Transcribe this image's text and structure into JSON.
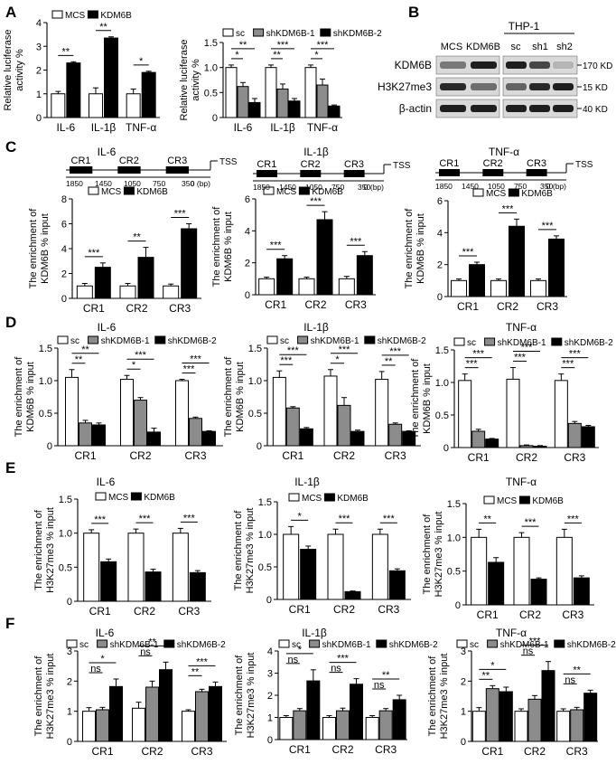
{
  "colors": {
    "white": "#ffffff",
    "gray": "#8c8c8c",
    "black": "#000000"
  },
  "panel_labels": [
    "A",
    "B",
    "C",
    "D",
    "E",
    "F"
  ],
  "blot": {
    "cell_line": "THP-1",
    "lanes_left": [
      "MCS",
      "KDM6B"
    ],
    "lanes_right": [
      "sc",
      "sh1",
      "sh2"
    ],
    "rows": [
      {
        "label": "KDM6B",
        "marker": "170 KD"
      },
      {
        "label": "H3K27me3",
        "marker": "15 KD"
      },
      {
        "label": "β-actin",
        "marker": "40 KD"
      }
    ],
    "intensity_left": [
      [
        0.45,
        0.9
      ],
      [
        0.85,
        0.5
      ],
      [
        0.9,
        0.9
      ]
    ],
    "intensity_right": [
      [
        0.9,
        0.7,
        0.15
      ],
      [
        0.55,
        0.85,
        0.9
      ],
      [
        0.9,
        0.9,
        0.9
      ]
    ]
  },
  "tss": [
    {
      "title": "IL-6",
      "regions": [
        "CR1",
        "CR2",
        "CR3"
      ],
      "ticks": [
        "1850",
        "1450",
        "1050",
        "750",
        "350",
        "0 (bp)"
      ],
      "end_label": "TSS"
    },
    {
      "title": "IL-1β",
      "regions": [
        "CR1",
        "CR2",
        "CR3"
      ],
      "ticks": [
        "1850",
        "1450",
        "1050",
        "750",
        "350",
        "0 (bp)"
      ],
      "end_label": "TSS"
    },
    {
      "title": "TNF-α",
      "regions": [
        "CR1",
        "CR2",
        "CR3"
      ],
      "ticks": [
        "1850",
        "1450",
        "1050",
        "750",
        "350",
        "0 (bp)"
      ],
      "end_label": "TSS"
    }
  ],
  "chart_data": [
    {
      "id": "A-left",
      "type": "bar",
      "title": "",
      "xlabel": "",
      "ylabel": "Relative luciferase activity %",
      "ylim": [
        0,
        4
      ],
      "yticks": [
        0,
        1,
        2,
        3,
        4
      ],
      "categories": [
        "IL-6",
        "IL-1β",
        "TNF-α"
      ],
      "series": [
        {
          "name": "MCS",
          "color": "white",
          "values": [
            1.0,
            1.0,
            1.0
          ],
          "err": [
            0.1,
            0.25,
            0.2
          ]
        },
        {
          "name": "KDM6B",
          "color": "black",
          "values": [
            2.3,
            3.35,
            1.9
          ],
          "err": [
            0.05,
            0.05,
            0.05
          ]
        }
      ],
      "sig": [
        [
          "**"
        ],
        [
          "**"
        ],
        [
          "*"
        ]
      ]
    },
    {
      "id": "A-right",
      "type": "bar",
      "title": "",
      "xlabel": "",
      "ylabel": "Relative luciferase activity %",
      "ylim": [
        0,
        1.5
      ],
      "yticks": [
        0,
        0.5,
        1.0,
        1.5
      ],
      "categories": [
        "IL-6",
        "IL-1β",
        "TNF-α"
      ],
      "series": [
        {
          "name": "sc",
          "color": "white",
          "values": [
            1.0,
            1.0,
            1.0
          ],
          "err": [
            0.05,
            0.05,
            0.05
          ]
        },
        {
          "name": "shKDM6B-1",
          "color": "gray",
          "values": [
            0.62,
            0.57,
            0.65
          ],
          "err": [
            0.08,
            0.1,
            0.12
          ]
        },
        {
          "name": "shKDM6B-2",
          "color": "black",
          "values": [
            0.3,
            0.33,
            0.23
          ],
          "err": [
            0.08,
            0.05,
            0.02
          ]
        }
      ],
      "sig": [
        [
          "*",
          "**"
        ],
        [
          "**",
          "***"
        ],
        [
          "*",
          "***"
        ]
      ]
    },
    {
      "id": "C-IL6",
      "type": "bar",
      "title": "",
      "xlabel": "",
      "ylabel": "The enrichment of KDM6B % input",
      "ylim": [
        0,
        8
      ],
      "yticks": [
        0,
        2,
        4,
        6,
        8
      ],
      "categories": [
        "CR1",
        "CR2",
        "CR3"
      ],
      "series": [
        {
          "name": "MCS",
          "color": "white",
          "values": [
            1.0,
            1.0,
            1.0
          ],
          "err": [
            0.2,
            0.2,
            0.15
          ]
        },
        {
          "name": "KDM6B",
          "color": "black",
          "values": [
            2.5,
            3.3,
            5.6
          ],
          "err": [
            0.35,
            0.8,
            0.4
          ]
        }
      ],
      "sig": [
        [
          "***"
        ],
        [
          "**"
        ],
        [
          "***"
        ]
      ]
    },
    {
      "id": "C-IL1b",
      "type": "bar",
      "title": "",
      "xlabel": "",
      "ylabel": "The enrichment of KDM6B % input",
      "ylim": [
        0,
        6
      ],
      "yticks": [
        0,
        2,
        4,
        6
      ],
      "categories": [
        "CR1",
        "CR2",
        "CR3"
      ],
      "series": [
        {
          "name": "MCS",
          "color": "white",
          "values": [
            1.0,
            1.0,
            1.0
          ],
          "err": [
            0.1,
            0.1,
            0.15
          ]
        },
        {
          "name": "KDM6B",
          "color": "black",
          "values": [
            2.25,
            4.7,
            2.45
          ],
          "err": [
            0.2,
            0.5,
            0.25
          ]
        }
      ],
      "sig": [
        [
          "***"
        ],
        [
          "***"
        ],
        [
          "***"
        ]
      ]
    },
    {
      "id": "C-TNFa",
      "type": "bar",
      "title": "",
      "xlabel": "",
      "ylabel": "The enrichment of KDM6B % input",
      "ylim": [
        0,
        6
      ],
      "yticks": [
        0,
        2,
        4,
        6
      ],
      "categories": [
        "CR1",
        "CR2",
        "CR3"
      ],
      "series": [
        {
          "name": "MCS",
          "color": "white",
          "values": [
            1.0,
            1.0,
            1.0
          ],
          "err": [
            0.1,
            0.1,
            0.1
          ]
        },
        {
          "name": "KDM6B",
          "color": "black",
          "values": [
            2.0,
            4.4,
            3.6
          ],
          "err": [
            0.15,
            0.45,
            0.2
          ]
        }
      ],
      "sig": [
        [
          "***"
        ],
        [
          "***"
        ],
        [
          "***"
        ]
      ]
    },
    {
      "id": "D-IL6",
      "type": "bar",
      "title": "",
      "xlabel": "",
      "ylabel": "The enrichment of KDM6B % input",
      "ylim": [
        0,
        1.5
      ],
      "yticks": [
        0,
        0.5,
        1.0,
        1.5
      ],
      "categories": [
        "CR1",
        "CR2",
        "CR3"
      ],
      "series": [
        {
          "name": "sc",
          "color": "white",
          "values": [
            1.05,
            1.02,
            1.0
          ],
          "err": [
            0.12,
            0.06,
            0.02
          ]
        },
        {
          "name": "shKDM6B-1",
          "color": "gray",
          "values": [
            0.35,
            0.7,
            0.42
          ],
          "err": [
            0.04,
            0.04,
            0.02
          ]
        },
        {
          "name": "shKDM6B-2",
          "color": "black",
          "values": [
            0.32,
            0.21,
            0.22
          ],
          "err": [
            0.03,
            0.06,
            0.01
          ]
        }
      ],
      "sig": [
        [
          "**",
          "**"
        ],
        [
          "*",
          "***"
        ],
        [
          "***",
          "***"
        ]
      ]
    },
    {
      "id": "D-IL1b",
      "type": "bar",
      "title": "",
      "xlabel": "",
      "ylabel": "The enrichment of KDM6B % input",
      "ylim": [
        0,
        1.5
      ],
      "yticks": [
        0,
        0.5,
        1.0,
        1.5
      ],
      "categories": [
        "CR1",
        "CR2",
        "CR3"
      ],
      "series": [
        {
          "name": "sc",
          "color": "white",
          "values": [
            1.05,
            1.07,
            1.02
          ],
          "err": [
            0.1,
            0.1,
            0.12
          ]
        },
        {
          "name": "shKDM6B-1",
          "color": "gray",
          "values": [
            0.58,
            0.62,
            0.33
          ],
          "err": [
            0.02,
            0.12,
            0.02
          ]
        },
        {
          "name": "shKDM6B-2",
          "color": "black",
          "values": [
            0.26,
            0.22,
            0.22
          ],
          "err": [
            0.02,
            0.02,
            0.01
          ]
        }
      ],
      "sig": [
        [
          "***",
          "***"
        ],
        [
          "*",
          "***"
        ],
        [
          "**",
          "***"
        ]
      ]
    },
    {
      "id": "D-TNFa",
      "type": "bar",
      "title": "",
      "xlabel": "",
      "ylabel": "The enrichment of KDM6B % input",
      "ylim": [
        0,
        1.5
      ],
      "yticks": [
        0,
        0.5,
        1.0,
        1.5
      ],
      "categories": [
        "CR1",
        "CR2",
        "CR3"
      ],
      "series": [
        {
          "name": "sc",
          "color": "white",
          "values": [
            1.03,
            1.05,
            1.03
          ],
          "err": [
            0.1,
            0.18,
            0.1
          ]
        },
        {
          "name": "shKDM6B-1",
          "color": "gray",
          "values": [
            0.25,
            0.03,
            0.37
          ],
          "err": [
            0.03,
            0.01,
            0.03
          ]
        },
        {
          "name": "shKDM6B-2",
          "color": "black",
          "values": [
            0.13,
            0.02,
            0.32
          ],
          "err": [
            0.01,
            0.01,
            0.02
          ]
        }
      ],
      "sig": [
        [
          "***",
          "***"
        ],
        [
          "***",
          "***"
        ],
        [
          "***",
          "***"
        ]
      ]
    },
    {
      "id": "E-IL6",
      "type": "bar",
      "title": "",
      "xlabel": "",
      "ylabel": "The enrichment of H3K27me3 % input",
      "ylim": [
        0,
        1.5
      ],
      "yticks": [
        0,
        0.5,
        1.0,
        1.5
      ],
      "categories": [
        "CR1",
        "CR2",
        "CR3"
      ],
      "series": [
        {
          "name": "MCS",
          "color": "white",
          "values": [
            1.0,
            1.0,
            1.0
          ],
          "err": [
            0.05,
            0.06,
            0.07
          ]
        },
        {
          "name": "KDM6B",
          "color": "black",
          "values": [
            0.58,
            0.43,
            0.42
          ],
          "err": [
            0.04,
            0.04,
            0.03
          ]
        }
      ],
      "sig": [
        [
          "***"
        ],
        [
          "***"
        ],
        [
          "***"
        ]
      ]
    },
    {
      "id": "E-IL1b",
      "type": "bar",
      "title": "",
      "xlabel": "",
      "ylabel": "The enrichment of H3K27me3 % input",
      "ylim": [
        0,
        1.5
      ],
      "yticks": [
        0,
        0.5,
        1.0,
        1.5
      ],
      "categories": [
        "CR1",
        "CR2",
        "CR3"
      ],
      "series": [
        {
          "name": "MCS",
          "color": "white",
          "values": [
            1.0,
            1.0,
            1.0
          ],
          "err": [
            0.12,
            0.08,
            0.08
          ]
        },
        {
          "name": "KDM6B",
          "color": "black",
          "values": [
            0.77,
            0.12,
            0.44
          ],
          "err": [
            0.05,
            0.01,
            0.03
          ]
        }
      ],
      "sig": [
        [
          "*"
        ],
        [
          "***"
        ],
        [
          "***"
        ]
      ]
    },
    {
      "id": "E-TNFa",
      "type": "bar",
      "title": "",
      "xlabel": "",
      "ylabel": "The enrichment of H3K27me3 % input",
      "ylim": [
        0,
        1.5
      ],
      "yticks": [
        0,
        0.5,
        1.0,
        1.5
      ],
      "categories": [
        "CR1",
        "CR2",
        "CR3"
      ],
      "series": [
        {
          "name": "MCS",
          "color": "white",
          "values": [
            1.0,
            1.0,
            1.0
          ],
          "err": [
            0.12,
            0.07,
            0.12
          ]
        },
        {
          "name": "KDM6B",
          "color": "black",
          "values": [
            0.63,
            0.38,
            0.4
          ],
          "err": [
            0.07,
            0.02,
            0.03
          ]
        }
      ],
      "sig": [
        [
          "**"
        ],
        [
          "***"
        ],
        [
          "***"
        ]
      ]
    },
    {
      "id": "F-IL6",
      "type": "bar",
      "title": "",
      "xlabel": "",
      "ylabel": "The enrichment of H3K27me3 % input",
      "ylim": [
        0,
        3
      ],
      "yticks": [
        0,
        1,
        2,
        3
      ],
      "categories": [
        "CR1",
        "CR2",
        "CR3"
      ],
      "series": [
        {
          "name": "sc",
          "color": "white",
          "values": [
            1.0,
            1.1,
            1.0
          ],
          "err": [
            0.12,
            0.2,
            0.05
          ]
        },
        {
          "name": "shKDM6B-1",
          "color": "gray",
          "values": [
            1.05,
            1.8,
            1.65
          ],
          "err": [
            0.08,
            0.2,
            0.08
          ]
        },
        {
          "name": "shKDM6B-2",
          "color": "black",
          "values": [
            1.82,
            2.38,
            1.82
          ],
          "err": [
            0.25,
            0.25,
            0.15
          ]
        }
      ],
      "sig": [
        [
          "ns",
          "*"
        ],
        [
          "ns",
          "**"
        ],
        [
          "**",
          "***"
        ]
      ]
    },
    {
      "id": "F-IL1b",
      "type": "bar",
      "title": "",
      "xlabel": "",
      "ylabel": "The enrichment of H3K27me3 % input",
      "ylim": [
        0,
        4
      ],
      "yticks": [
        0,
        1,
        2,
        3,
        4
      ],
      "categories": [
        "CR1",
        "CR2",
        "CR3"
      ],
      "series": [
        {
          "name": "sc",
          "color": "white",
          "values": [
            1.0,
            1.0,
            1.0
          ],
          "err": [
            0.08,
            0.08,
            0.08
          ]
        },
        {
          "name": "shKDM6B-1",
          "color": "gray",
          "values": [
            1.3,
            1.3,
            1.3
          ],
          "err": [
            0.1,
            0.12,
            0.1
          ]
        },
        {
          "name": "shKDM6B-2",
          "color": "black",
          "values": [
            2.65,
            2.5,
            1.8
          ],
          "err": [
            0.5,
            0.25,
            0.2
          ]
        }
      ],
      "sig": [
        [
          "ns",
          "*"
        ],
        [
          "ns",
          "***"
        ],
        [
          "ns",
          "**"
        ]
      ]
    },
    {
      "id": "F-TNFa",
      "type": "bar",
      "title": "",
      "xlabel": "",
      "ylabel": "The enrichment of H3K27me3 % input",
      "ylim": [
        0,
        3
      ],
      "yticks": [
        0,
        1,
        2,
        3
      ],
      "categories": [
        "CR1",
        "CR2",
        "CR3"
      ],
      "series": [
        {
          "name": "sc",
          "color": "white",
          "values": [
            1.0,
            1.0,
            1.0
          ],
          "err": [
            0.12,
            0.08,
            0.08
          ]
        },
        {
          "name": "shKDM6B-1",
          "color": "gray",
          "values": [
            1.75,
            1.4,
            1.05
          ],
          "err": [
            0.1,
            0.12,
            0.08
          ]
        },
        {
          "name": "shKDM6B-2",
          "color": "black",
          "values": [
            1.65,
            2.35,
            1.6
          ],
          "err": [
            0.15,
            0.3,
            0.1
          ]
        }
      ],
      "sig": [
        [
          "**",
          "*"
        ],
        [
          "ns",
          "***"
        ],
        [
          "ns",
          "**"
        ]
      ]
    }
  ],
  "panel_titles": {
    "C-IL6": "IL-6",
    "C-IL1b": "IL-1β",
    "C-TNFa": "TNF-α",
    "D-IL6": "IL-6",
    "D-IL1b": "IL-1β",
    "D-TNFa": "TNF-α",
    "E-IL6": "IL-6",
    "E-IL1b": "IL-1β",
    "E-TNFa": "TNF-α",
    "F-IL6": "IL-6",
    "F-IL1b": "IL-1β",
    "F-TNFa": "TNF-α"
  }
}
